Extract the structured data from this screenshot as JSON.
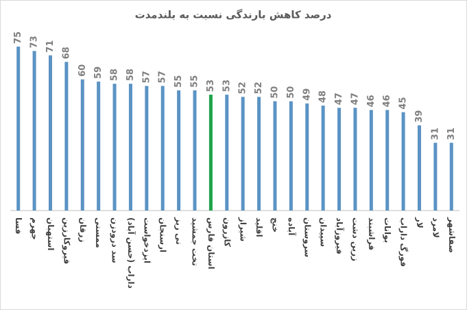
{
  "chart_data": {
    "type": "bar",
    "title": "درصد کاهش بارندگی نسبت به بلندمدت",
    "categories": [
      "فسا",
      "جهرم",
      "استهبان",
      "قیروکارزین",
      "زرقان",
      "ممسنی",
      "سد درودزن",
      "داراب (حسن آباد)",
      "ایزدخواست",
      "ارسنجان",
      "نی ریز",
      "تخت جمشید",
      "استان فارس",
      "کازرون",
      "شیراز",
      "اقلید",
      "خنج",
      "آباده",
      "سروستان",
      "سپیدان",
      "فیروزآباد",
      "زرین دشت",
      "فراشبند",
      "بوانات",
      "فورگ داراب",
      "لار",
      "لامرد",
      "صفاشهر"
    ],
    "values": [
      75,
      73,
      71,
      68,
      60,
      59,
      58,
      58,
      57,
      57,
      55,
      55,
      53,
      53,
      52,
      52,
      50,
      50,
      49,
      48,
      47,
      47,
      46,
      46,
      45,
      39,
      31,
      31
    ],
    "colors": [
      "#5b93c4",
      "#5b93c4",
      "#5b93c4",
      "#5b93c4",
      "#5b93c4",
      "#5b93c4",
      "#5b93c4",
      "#5b93c4",
      "#5b93c4",
      "#5b93c4",
      "#5b93c4",
      "#5b93c4",
      "#1fa34a",
      "#5b93c4",
      "#5b93c4",
      "#5b93c4",
      "#5b93c4",
      "#5b93c4",
      "#5b93c4",
      "#5b93c4",
      "#5b93c4",
      "#5b93c4",
      "#5b93c4",
      "#5b93c4",
      "#5b93c4",
      "#5b93c4",
      "#5b93c4",
      "#5b93c4"
    ],
    "ylim": [
      0,
      80
    ]
  }
}
